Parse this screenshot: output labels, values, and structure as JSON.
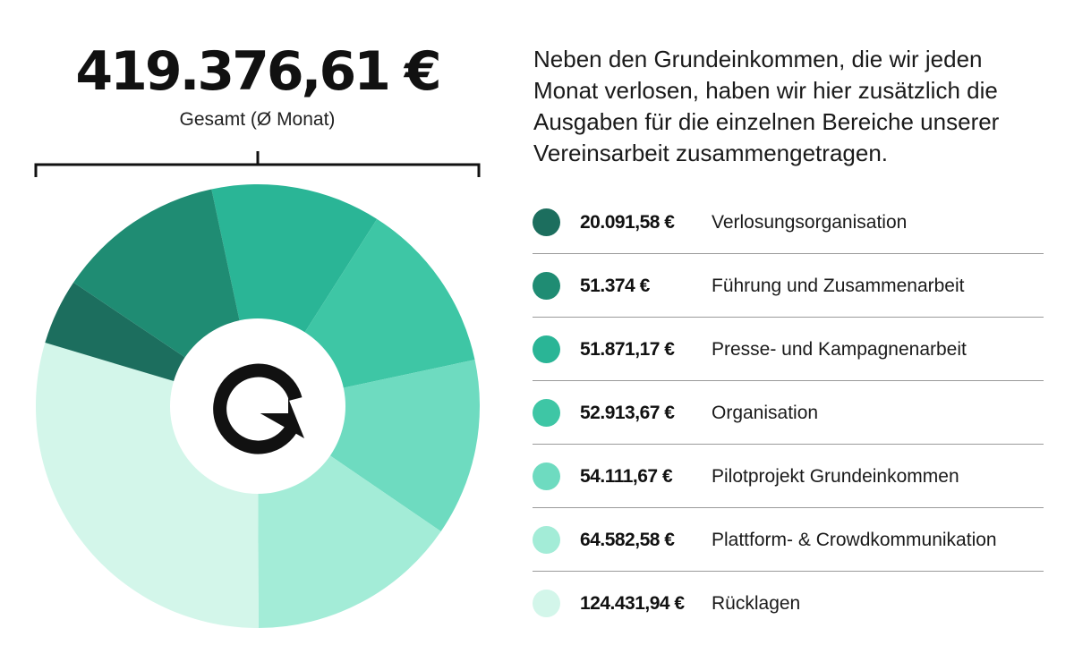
{
  "header": {
    "total": "419.376,61 €",
    "total_label": "Gesamt (Ø Monat)"
  },
  "intro": "Neben den Grundeinkommen, die wir jeden Monat verlosen, haben wir hier zusätzlich die Ausgaben für die einzelnen Bereiche unserer Vereinsarbeit zusammengetragen.",
  "logo": {
    "letter": "G",
    "icon": "g-arrow-logo-icon"
  },
  "chart_data": {
    "type": "pie",
    "title": "",
    "total_label": "419.376,61 €",
    "categories": [
      "Verlosungsorganisation",
      "Führung und Zusammenarbeit",
      "Presse- und Kampagnenarbeit",
      "Organisation",
      "Pilotprojekt Grundeinkommen",
      "Plattform- & Crowdkommunikation",
      "Rücklagen"
    ],
    "values": [
      20091.58,
      51374,
      51871.17,
      52913.67,
      54111.67,
      64582.58,
      124431.94
    ],
    "value_labels": [
      "20.091,58 €",
      "51.374 €",
      "51.871,17 €",
      "52.913,67 €",
      "54.111,67 €",
      "64.582,58 €",
      "124.431,94 €"
    ],
    "colors": [
      "#1c6e5e",
      "#1f8c73",
      "#2ab596",
      "#3ec6a5",
      "#6edbc0",
      "#a3ecd7",
      "#d3f6ea"
    ],
    "slice_order_clockwise_from_top": [
      2,
      3,
      4,
      5,
      6,
      0,
      1
    ],
    "legend_position": "right"
  }
}
